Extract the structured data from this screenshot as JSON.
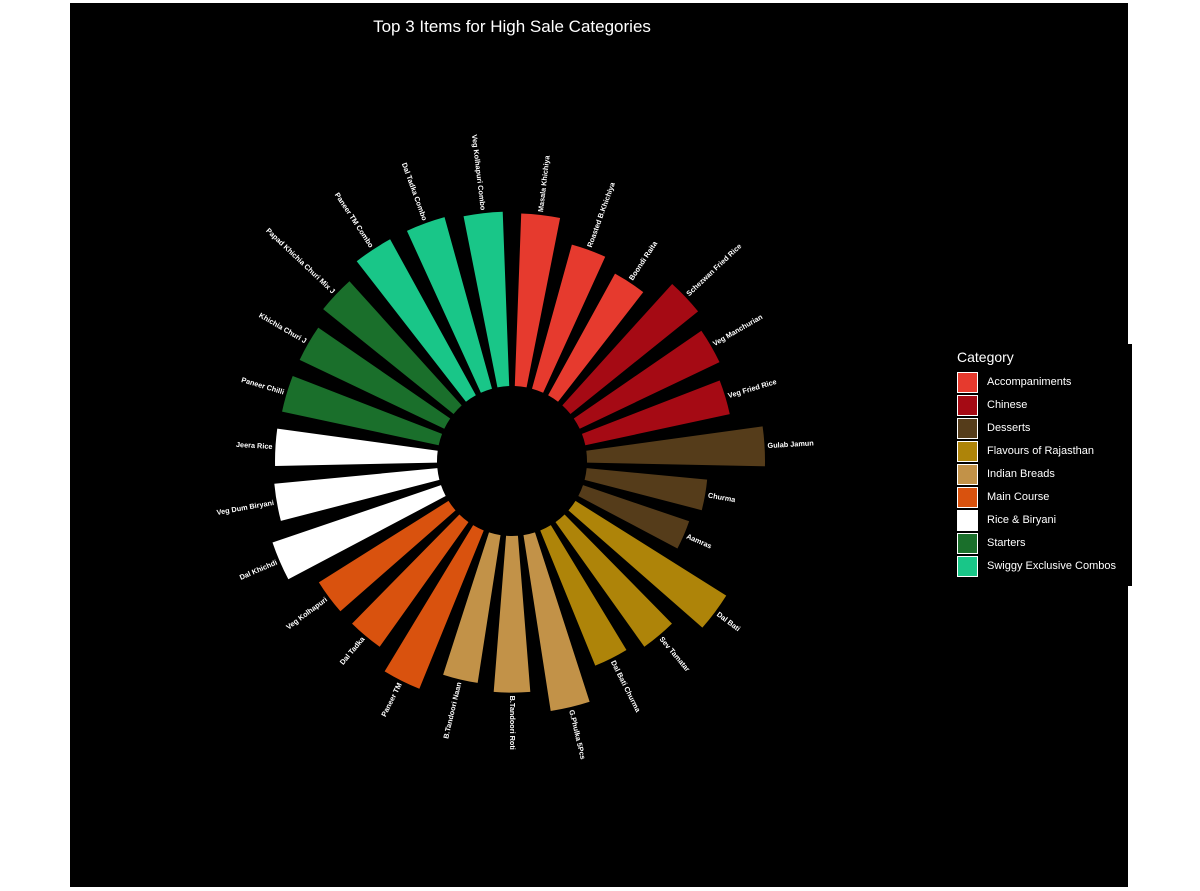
{
  "chart_data": {
    "type": "bar",
    "coord": "polar",
    "title": "Top 3 Items for High Sale Categories",
    "xlabel": "",
    "ylabel": "",
    "legend": {
      "title": "Category",
      "placement": "right"
    },
    "categories": [
      {
        "name": "Accompaniments",
        "color": "#E63A2E"
      },
      {
        "name": "Chinese",
        "color": "#A50A14"
      },
      {
        "name": "Desserts",
        "color": "#553C1A"
      },
      {
        "name": "Flavours of Rajasthan",
        "color": "#AE8409"
      },
      {
        "name": "Indian Breads",
        "color": "#C29248"
      },
      {
        "name": "Main Course",
        "color": "#D9520E"
      },
      {
        "name": "Rice & Biryani",
        "color": "#FFFFFF"
      },
      {
        "name": "Starters",
        "color": "#1A6F2B"
      },
      {
        "name": "Swiggy Exclusive Combos",
        "color": "#19C688"
      }
    ],
    "items": [
      {
        "label": "Masala Khichiya",
        "category": "Accompaniments",
        "value": 0.97
      },
      {
        "label": "Roasted B.Khichiya",
        "category": "Accompaniments",
        "value": 0.84
      },
      {
        "label": "Boondi Raita",
        "category": "Accompaniments",
        "value": 0.78
      },
      {
        "label": "Schezwan Fried Rice",
        "category": "Chinese",
        "value": 0.92
      },
      {
        "label": "Veg Manchurian",
        "category": "Chinese",
        "value": 0.87
      },
      {
        "label": "Veg Fried Rice",
        "category": "Chinese",
        "value": 0.83
      },
      {
        "label": "Gulab Jamun",
        "category": "Desserts",
        "value": 1.0
      },
      {
        "label": "Churma",
        "category": "Desserts",
        "value": 0.68
      },
      {
        "label": "Aamras",
        "category": "Desserts",
        "value": 0.63
      },
      {
        "label": "Dal Bati",
        "category": "Flavours of Rajasthan",
        "value": 1.0
      },
      {
        "label": "Sev Tamatar",
        "category": "Flavours of Rajasthan",
        "value": 0.86
      },
      {
        "label": "Dal Bati Churma",
        "category": "Flavours of Rajasthan",
        "value": 0.82
      },
      {
        "label": "G.Phulka 5Pcs",
        "category": "Indian Breads",
        "value": 1.0
      },
      {
        "label": "B.Tandoori Roti",
        "category": "Indian Breads",
        "value": 0.88
      },
      {
        "label": "B.Tandoori Naan",
        "category": "Indian Breads",
        "value": 0.84
      },
      {
        "label": "Paneer TM",
        "category": "Main Course",
        "value": 0.96
      },
      {
        "label": "Dal Tadka",
        "category": "Main Course",
        "value": 0.86
      },
      {
        "label": "Veg Kolhapuri",
        "category": "Main Course",
        "value": 0.86
      },
      {
        "label": "Dal Khichdi",
        "category": "Rice & Biryani",
        "value": 1.0
      },
      {
        "label": "Veg Dum Biryani",
        "category": "Rice & Biryani",
        "value": 0.92
      },
      {
        "label": "Jeera Rice",
        "category": "Rice & Biryani",
        "value": 0.91
      },
      {
        "label": "Paneer Chilli",
        "category": "Starters",
        "value": 0.9
      },
      {
        "label": "Khichia Churi J",
        "category": "Starters",
        "value": 0.9
      },
      {
        "label": "Papad Khichia Churi Mix J",
        "category": "Starters",
        "value": 0.94
      },
      {
        "label": "Paneer TM Combo",
        "category": "Swiggy Exclusive Combos",
        "value": 1.0
      },
      {
        "label": "Dal Tadka Combo",
        "category": "Swiggy Exclusive Combos",
        "value": 1.0
      },
      {
        "label": "Veg Kolhapuri Combo",
        "category": "Swiggy Exclusive Combos",
        "value": 0.98
      }
    ]
  }
}
